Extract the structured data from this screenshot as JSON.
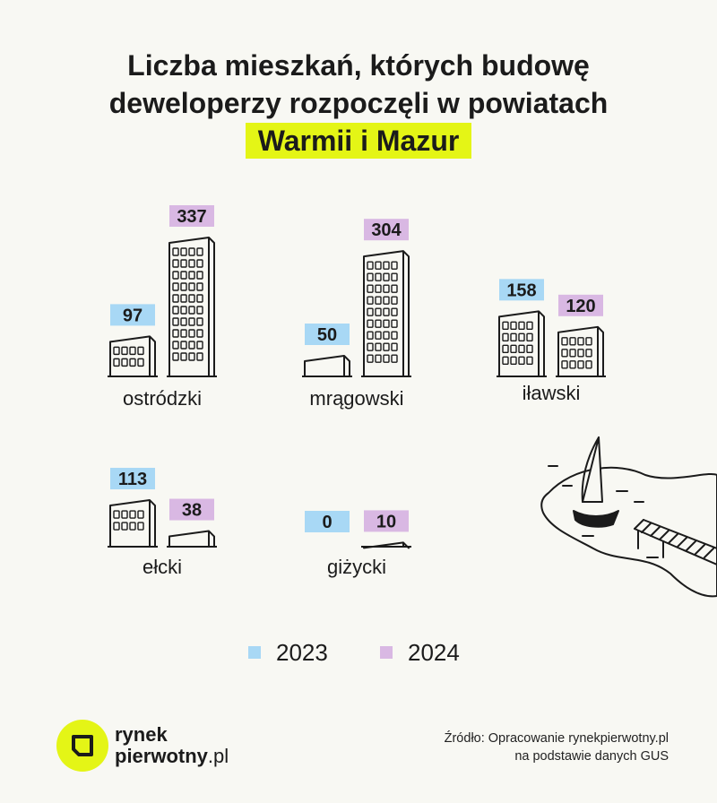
{
  "title": {
    "line1": "Liczba mieszkań, których budowę",
    "line2": "deweloperzy rozpoczęli w powiatach",
    "highlight": "Warmii i Mazur"
  },
  "chart_data": {
    "type": "bar",
    "categories": [
      "ostródzki",
      "mrągowski",
      "iławski",
      "ełcki",
      "giżycki"
    ],
    "series": [
      {
        "name": "2023",
        "values": [
          97,
          50,
          158,
          113,
          0
        ],
        "color": "#a8d8f5"
      },
      {
        "name": "2024",
        "values": [
          337,
          304,
          120,
          38,
          10
        ],
        "color": "#d9b8e3"
      }
    ],
    "bar_style": "building",
    "legend_position": "bottom"
  },
  "legend": {
    "labels": [
      "2023",
      "2024"
    ]
  },
  "logo": {
    "line1": "rynek",
    "line2a": "pierwotny",
    "line2b": ".pl"
  },
  "source": {
    "line1": "Źródło: Opracowanie rynekpierwotny.pl",
    "line2": "na podstawie danych GUS"
  }
}
